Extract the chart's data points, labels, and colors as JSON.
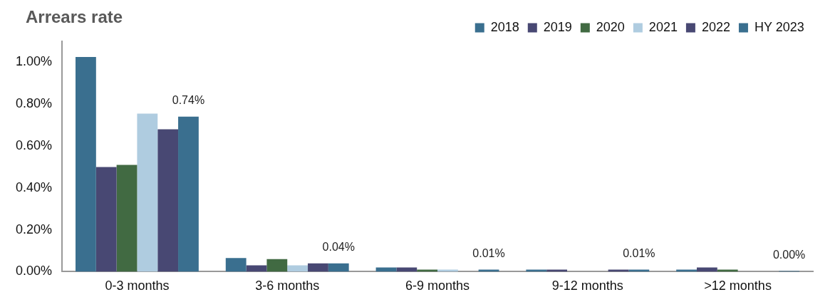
{
  "chart_data": {
    "type": "bar",
    "title": "Arrears rate",
    "categories": [
      "0-3 months",
      "3-6 months",
      "6-9 months",
      "9-12 months",
      ">12 months"
    ],
    "series": [
      {
        "name": "2018",
        "color": "#3a6f8f",
        "values": [
          1.025,
          0.065,
          0.02,
          0.01,
          0.01
        ]
      },
      {
        "name": "2019",
        "color": "#484873",
        "values": [
          0.5,
          0.03,
          0.02,
          0.01,
          0.02
        ]
      },
      {
        "name": "2020",
        "color": "#416a42",
        "values": [
          0.51,
          0.06,
          0.01,
          0,
          0.01
        ]
      },
      {
        "name": "2021",
        "color": "#afcce0",
        "values": [
          0.755,
          0.03,
          0.01,
          0,
          0
        ]
      },
      {
        "name": "2022",
        "color": "#484873",
        "values": [
          0.68,
          0.04,
          0,
          0.01,
          0
        ]
      },
      {
        "name": "HY 2023",
        "color": "#3a6f8f",
        "values": [
          0.74,
          0.04,
          0.01,
          0.01,
          0.003
        ],
        "value_labels": [
          "0.74%",
          "0.04%",
          "0.01%",
          "0.01%",
          "0.00%"
        ]
      }
    ],
    "ylim": [
      0,
      1.1
    ],
    "yticks": [
      {
        "value": 0,
        "label": "0.00%"
      },
      {
        "value": 0.2,
        "label": "0.20%"
      },
      {
        "value": 0.4,
        "label": "0.40%"
      },
      {
        "value": 0.6,
        "label": "0.60%"
      },
      {
        "value": 0.8,
        "label": "0.80%"
      },
      {
        "value": 1,
        "label": "1.00%"
      }
    ],
    "grid": false,
    "legend": "top right"
  }
}
